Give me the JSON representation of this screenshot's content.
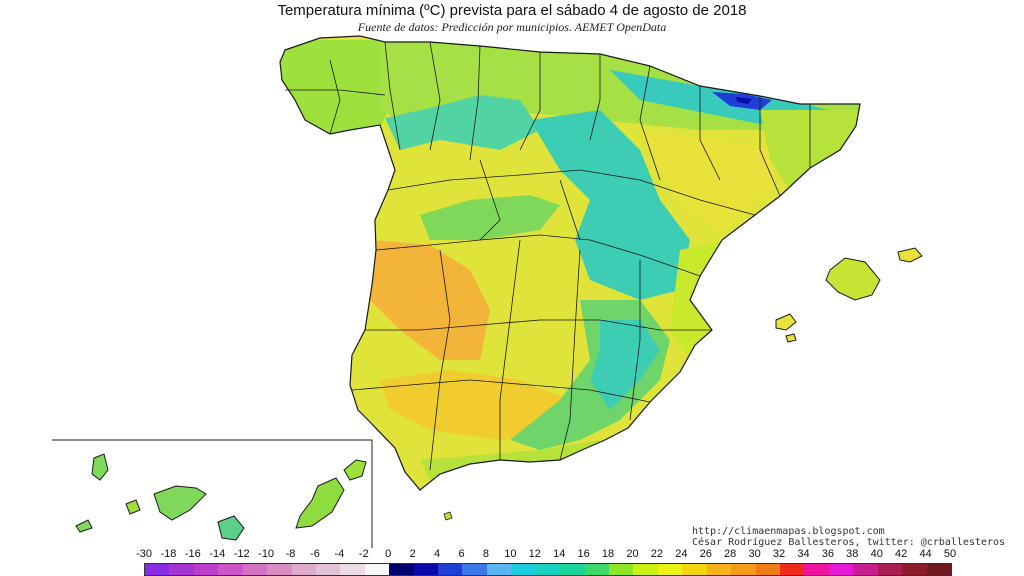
{
  "title": "Temperatura mínima (ºC) prevista para el sábado 4 de agosto de 2018",
  "subtitle": "Fuente de datos: Predicción por municipios. AEMET OpenData",
  "credits": {
    "blog": "http://climaenmapas.blogspot.com",
    "author": "César Rodríguez Ballesteros, twitter: @crballesteros"
  },
  "legend": {
    "ticks": [
      "-30",
      "-18",
      "-16",
      "-14",
      "-12",
      "-10",
      "-8",
      "-6",
      "-4",
      "-2",
      "0",
      "2",
      "4",
      "6",
      "8",
      "10",
      "12",
      "14",
      "16",
      "18",
      "20",
      "22",
      "24",
      "26",
      "28",
      "30",
      "32",
      "34",
      "36",
      "38",
      "40",
      "42",
      "44",
      "50"
    ],
    "colors": [
      "#8a2be2",
      "#a335d0",
      "#bb3fc8",
      "#cc55c8",
      "#d472c6",
      "#d88dc2",
      "#dcaacb",
      "#e2c3d6",
      "#ebdbe6",
      "#f8f8f8",
      "#00006e",
      "#0a0aa8",
      "#1f3ed6",
      "#3d78e8",
      "#5ab6f0",
      "#1ccde0",
      "#17d0c0",
      "#19d39a",
      "#3cd96a",
      "#8fe628",
      "#c9ef14",
      "#ecf213",
      "#f4d510",
      "#f4b41a",
      "#f39a16",
      "#f07d14",
      "#f02a1a",
      "#ee14a0",
      "#e41cd4",
      "#c81e92",
      "#a81e52",
      "#8a1c2e",
      "#6e1a22"
    ]
  },
  "colors": {
    "sea": "#ffffff",
    "border": "#1a1a1a",
    "regions": {
      "hot_southwest": "#f3b43a",
      "warm_interior": "#e9e23a",
      "mild": "#c5e433",
      "cool": "#83d84c",
      "cold_highlands": "#3ccdb4",
      "coldest_pyrenees": "#1a2acf"
    }
  }
}
